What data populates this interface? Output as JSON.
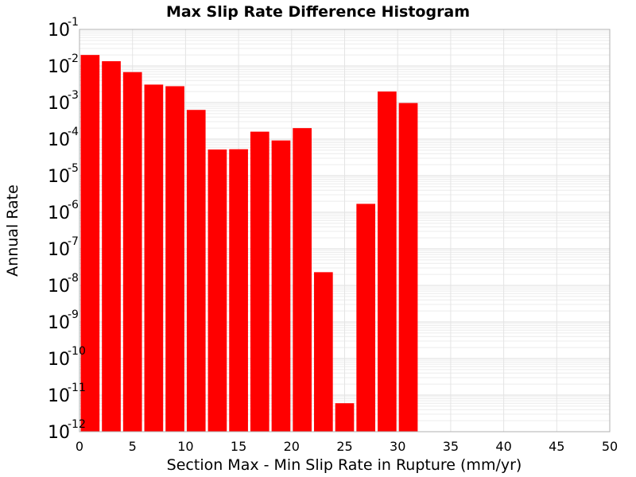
{
  "chart_data": {
    "type": "bar",
    "title": "Max Slip Rate Difference Histogram",
    "xlabel": "Section Max - Min Slip Rate in Rupture (mm/yr)",
    "ylabel": "Annual Rate",
    "xlim": [
      0,
      50
    ],
    "ylim": [
      1e-12,
      0.1
    ],
    "yscale": "log",
    "grid": true,
    "bar_color": "#ff0000",
    "bin_width": 2,
    "x_ticks": [
      "0",
      "5",
      "10",
      "15",
      "20",
      "25",
      "30",
      "35",
      "40",
      "45",
      "50"
    ],
    "y_ticks": [
      {
        "base": "10",
        "exp": "-12"
      },
      {
        "base": "10",
        "exp": "-11"
      },
      {
        "base": "10",
        "exp": "-10"
      },
      {
        "base": "10",
        "exp": "-9"
      },
      {
        "base": "10",
        "exp": "-8"
      },
      {
        "base": "10",
        "exp": "-7"
      },
      {
        "base": "10",
        "exp": "-6"
      },
      {
        "base": "10",
        "exp": "-5"
      },
      {
        "base": "10",
        "exp": "-4"
      },
      {
        "base": "10",
        "exp": "-3"
      },
      {
        "base": "10",
        "exp": "-2"
      },
      {
        "base": "10",
        "exp": "-1"
      }
    ],
    "bins": [
      {
        "x_start": 0,
        "x_end": 2,
        "value": 0.02
      },
      {
        "x_start": 2,
        "x_end": 4,
        "value": 0.0135
      },
      {
        "x_start": 4,
        "x_end": 6,
        "value": 0.0068
      },
      {
        "x_start": 6,
        "x_end": 8,
        "value": 0.0031
      },
      {
        "x_start": 8,
        "x_end": 10,
        "value": 0.0028
      },
      {
        "x_start": 10,
        "x_end": 12,
        "value": 0.00063
      },
      {
        "x_start": 12,
        "x_end": 14,
        "value": 5.2e-05
      },
      {
        "x_start": 14,
        "x_end": 16,
        "value": 5.3e-05
      },
      {
        "x_start": 16,
        "x_end": 18,
        "value": 0.00016
      },
      {
        "x_start": 18,
        "x_end": 20,
        "value": 9.2e-05
      },
      {
        "x_start": 20,
        "x_end": 22,
        "value": 0.0002
      },
      {
        "x_start": 22,
        "x_end": 24,
        "value": 2.3e-08
      },
      {
        "x_start": 24,
        "x_end": 26,
        "value": 6e-12
      },
      {
        "x_start": 26,
        "x_end": 28,
        "value": 1.7e-06
      },
      {
        "x_start": 28,
        "x_end": 30,
        "value": 0.002
      },
      {
        "x_start": 30,
        "x_end": 32,
        "value": 0.00097
      }
    ]
  }
}
